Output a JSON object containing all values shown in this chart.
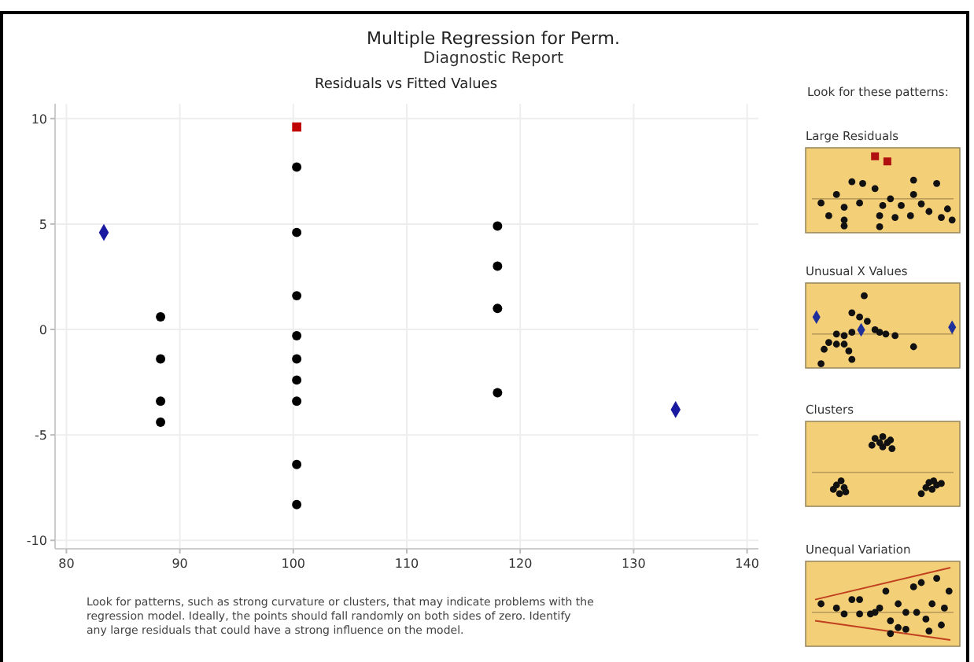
{
  "chart_data": {
    "type": "scatter",
    "title": "Multiple Regression for Perm.",
    "subtitle": "Diagnostic Report",
    "annotations": [
      "Residuals vs Fitted Values",
      "Look for patterns, such as strong curvature or clusters, that may indicate problems with the regression model. Ideally, the points should fall randomly on both sides of zero. Identify any large residuals that could have a strong influence on the model.",
      "Look for these patterns:",
      "Large Residuals",
      "Unusual X Values",
      "Clusters",
      "Unequal Variation"
    ],
    "xlim": [
      79,
      141
    ],
    "xticks": [
      80,
      90,
      100,
      110,
      120,
      130,
      140
    ],
    "ylim": [
      -10.4,
      10.7
    ],
    "yticks": [
      -10,
      -5,
      0,
      5,
      10
    ],
    "grid": true,
    "series": [
      {
        "color": "#000000",
        "marker": "circle",
        "x": [
          88.3,
          88.3,
          88.3,
          88.3,
          100.3,
          100.3,
          100.3,
          100.3,
          100.3,
          100.3,
          100.3,
          100.3,
          100.3,
          118.0,
          118.0,
          118.0,
          118.0
        ],
        "values": [
          0.6,
          -1.4,
          -3.4,
          -4.4,
          7.7,
          4.6,
          1.6,
          -0.3,
          -1.4,
          -2.4,
          -3.4,
          -6.4,
          -8.3,
          4.9,
          3.0,
          1.0,
          -3.0
        ]
      },
      {
        "color": "#c00000",
        "marker": "square",
        "x": [
          100.3
        ],
        "values": [
          9.6
        ]
      },
      {
        "color": "#1a1aa0",
        "marker": "diamond",
        "x": [
          83.3,
          133.7
        ],
        "values": [
          4.6,
          -3.8
        ]
      }
    ]
  }
}
